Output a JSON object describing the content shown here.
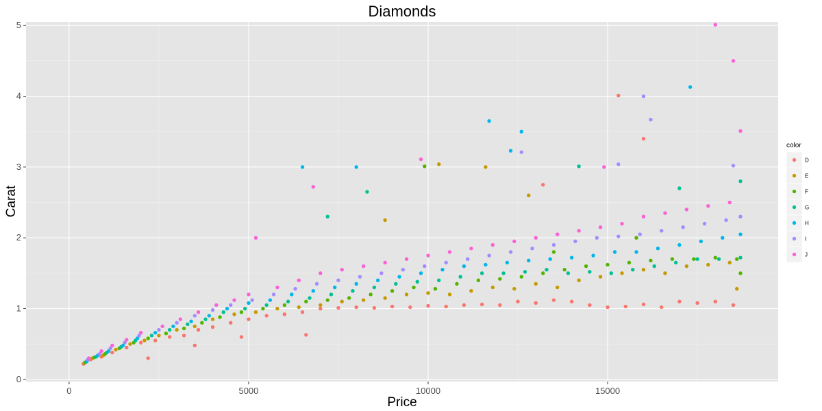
{
  "chart_data": {
    "type": "scatter",
    "title": "Diamonds",
    "xlabel": "Price",
    "ylabel": "Carat",
    "xlim": [
      -1200,
      19750
    ],
    "ylim": [
      -0.03,
      5.05
    ],
    "x_ticks": [
      0,
      5000,
      10000,
      15000
    ],
    "x_tick_labels": [
      "0",
      "5000",
      "10000",
      "15000"
    ],
    "y_ticks": [
      0,
      1,
      2,
      3,
      4,
      5
    ],
    "y_tick_labels": [
      "0",
      "1",
      "2",
      "3",
      "4",
      "5"
    ],
    "grid": true,
    "background": "#e5e5e5",
    "legend": {
      "title": "color",
      "position": "right",
      "entries": [
        {
          "label": "D",
          "color": "#f8766d"
        },
        {
          "label": "E",
          "color": "#c49a00"
        },
        {
          "label": "F",
          "color": "#53b400"
        },
        {
          "label": "G",
          "color": "#00c094"
        },
        {
          "label": "H",
          "color": "#00b6eb"
        },
        {
          "label": "I",
          "color": "#a58aff"
        },
        {
          "label": "J",
          "color": "#fb61d7"
        }
      ]
    },
    "series": [
      {
        "name": "D",
        "color": "#f8766d",
        "x": [
          400,
          600,
          900,
          1200,
          1600,
          2000,
          2400,
          2800,
          3200,
          3600,
          4000,
          4500,
          5000,
          5500,
          6000,
          6500,
          7000,
          7500,
          8000,
          8500,
          9000,
          9500,
          10000,
          10500,
          11000,
          11500,
          12000,
          12500,
          13000,
          13500,
          14000,
          14500,
          15000,
          15500,
          16000,
          16500,
          17000,
          17500,
          18000,
          18500,
          2200,
          3500,
          4800,
          6600,
          15300,
          16000,
          13200
        ],
        "y": [
          0.22,
          0.28,
          0.32,
          0.38,
          0.45,
          0.52,
          0.55,
          0.6,
          0.62,
          0.7,
          0.74,
          0.8,
          0.85,
          0.9,
          0.92,
          0.95,
          1.0,
          1.01,
          1.02,
          1.01,
          1.03,
          1.02,
          1.04,
          1.03,
          1.05,
          1.06,
          1.05,
          1.1,
          1.08,
          1.12,
          1.1,
          1.05,
          1.02,
          1.03,
          1.06,
          1.02,
          1.1,
          1.08,
          1.1,
          1.05,
          0.3,
          0.48,
          0.6,
          0.63,
          4.01,
          3.4,
          2.75
        ]
      },
      {
        "name": "E",
        "color": "#c49a00",
        "x": [
          420,
          650,
          950,
          1300,
          1700,
          2100,
          2500,
          3000,
          3500,
          4000,
          4600,
          5200,
          5800,
          6400,
          7000,
          7600,
          8200,
          8800,
          9400,
          10000,
          10600,
          11200,
          11800,
          12400,
          13000,
          13600,
          14200,
          14800,
          15400,
          16000,
          16600,
          17200,
          17800,
          18400,
          10300,
          11600,
          12800,
          8800,
          18600
        ],
        "y": [
          0.23,
          0.3,
          0.34,
          0.42,
          0.5,
          0.55,
          0.62,
          0.7,
          0.75,
          0.85,
          0.92,
          0.95,
          1.0,
          1.02,
          1.05,
          1.1,
          1.12,
          1.15,
          1.2,
          1.22,
          1.2,
          1.25,
          1.3,
          1.28,
          1.35,
          1.3,
          1.4,
          1.45,
          1.5,
          1.55,
          1.5,
          1.6,
          1.62,
          1.65,
          3.04,
          3.0,
          2.6,
          2.25,
          1.28
        ]
      },
      {
        "name": "F",
        "color": "#53b400",
        "x": [
          450,
          700,
          1000,
          1400,
          1800,
          2200,
          2700,
          3200,
          3700,
          4200,
          4800,
          5400,
          6000,
          6600,
          7200,
          7800,
          8400,
          9000,
          9600,
          10200,
          10800,
          11400,
          12000,
          12600,
          13200,
          13800,
          14400,
          15000,
          15600,
          16200,
          16800,
          17400,
          18000,
          18600,
          9900,
          18700,
          13500,
          15800
        ],
        "y": [
          0.24,
          0.31,
          0.36,
          0.44,
          0.52,
          0.58,
          0.65,
          0.72,
          0.8,
          0.88,
          0.95,
          1.0,
          1.05,
          1.1,
          1.12,
          1.15,
          1.2,
          1.25,
          1.3,
          1.28,
          1.35,
          1.4,
          1.42,
          1.45,
          1.5,
          1.55,
          1.6,
          1.62,
          1.65,
          1.68,
          1.7,
          1.7,
          1.72,
          1.7,
          3.01,
          1.5,
          1.8,
          2.0
        ]
      },
      {
        "name": "G",
        "color": "#00c094",
        "x": [
          480,
          750,
          1050,
          1450,
          1850,
          2300,
          2800,
          3300,
          3800,
          4300,
          4900,
          5500,
          6100,
          6700,
          7300,
          7900,
          8500,
          9100,
          9700,
          10300,
          10900,
          11500,
          12100,
          12700,
          13300,
          13900,
          14500,
          15100,
          15700,
          16300,
          16900,
          17500,
          18100,
          18700,
          7200,
          8300,
          14200,
          17000,
          18700
        ],
        "y": [
          0.25,
          0.32,
          0.38,
          0.46,
          0.55,
          0.62,
          0.7,
          0.78,
          0.85,
          0.95,
          1.0,
          1.05,
          1.1,
          1.15,
          1.2,
          1.25,
          1.3,
          1.35,
          1.38,
          1.4,
          1.45,
          1.5,
          1.5,
          1.52,
          1.55,
          1.5,
          1.52,
          1.5,
          1.55,
          1.6,
          1.65,
          1.7,
          1.7,
          1.72,
          2.3,
          2.65,
          3.01,
          2.7,
          2.8
        ]
      },
      {
        "name": "H",
        "color": "#00b6eb",
        "x": [
          500,
          800,
          1100,
          1500,
          1900,
          2400,
          2900,
          3400,
          3900,
          4400,
          5000,
          5600,
          6200,
          6800,
          7400,
          8000,
          8600,
          9200,
          9800,
          10400,
          11000,
          11600,
          12200,
          12800,
          13400,
          14000,
          14600,
          15200,
          15800,
          16400,
          17000,
          17600,
          18200,
          18700,
          6500,
          11700,
          12600,
          17300,
          12300,
          8000
        ],
        "y": [
          0.26,
          0.34,
          0.4,
          0.48,
          0.58,
          0.66,
          0.75,
          0.82,
          0.9,
          1.0,
          1.08,
          1.12,
          1.2,
          1.25,
          1.3,
          1.35,
          1.4,
          1.45,
          1.5,
          1.55,
          1.6,
          1.62,
          1.65,
          1.68,
          1.7,
          1.72,
          1.75,
          1.8,
          1.8,
          1.85,
          1.9,
          1.95,
          2.0,
          2.05,
          3.0,
          3.65,
          3.5,
          4.13,
          3.23,
          3.0
        ]
      },
      {
        "name": "I",
        "color": "#a58aff",
        "x": [
          520,
          850,
          1150,
          1550,
          1950,
          2500,
          3000,
          3500,
          4000,
          4500,
          5100,
          5700,
          6300,
          6900,
          7500,
          8100,
          8700,
          9300,
          9900,
          10500,
          11100,
          11700,
          12300,
          12900,
          13500,
          14100,
          14700,
          15300,
          15900,
          16500,
          17100,
          17700,
          18300,
          18700,
          16000,
          16200,
          12600,
          15300,
          18500
        ],
        "y": [
          0.28,
          0.36,
          0.44,
          0.52,
          0.62,
          0.7,
          0.8,
          0.9,
          0.98,
          1.05,
          1.12,
          1.2,
          1.28,
          1.35,
          1.4,
          1.45,
          1.5,
          1.55,
          1.6,
          1.65,
          1.7,
          1.75,
          1.8,
          1.85,
          1.9,
          1.95,
          2.0,
          2.02,
          2.05,
          2.1,
          2.15,
          2.2,
          2.25,
          2.3,
          4.0,
          3.67,
          3.21,
          3.04,
          3.02
        ]
      },
      {
        "name": "J",
        "color": "#fb61d7",
        "x": [
          550,
          900,
          1200,
          1600,
          2000,
          2600,
          3100,
          3600,
          4100,
          4600,
          5000,
          5200,
          5800,
          6400,
          7000,
          7600,
          8200,
          8800,
          9400,
          10000,
          10600,
          11200,
          11800,
          12400,
          13000,
          13600,
          14200,
          14800,
          15400,
          16000,
          16600,
          17200,
          17800,
          18400,
          18000,
          18500,
          18700,
          9800,
          6800,
          14900
        ],
        "y": [
          0.3,
          0.4,
          0.48,
          0.56,
          0.66,
          0.75,
          0.85,
          0.95,
          1.05,
          1.12,
          1.2,
          2.0,
          1.3,
          1.4,
          1.5,
          1.55,
          1.6,
          1.65,
          1.7,
          1.75,
          1.8,
          1.85,
          1.9,
          1.95,
          2.0,
          2.05,
          2.1,
          2.15,
          2.2,
          2.3,
          2.35,
          2.4,
          2.45,
          2.5,
          5.01,
          4.5,
          3.51,
          3.11,
          2.72,
          3.0
        ]
      }
    ]
  }
}
